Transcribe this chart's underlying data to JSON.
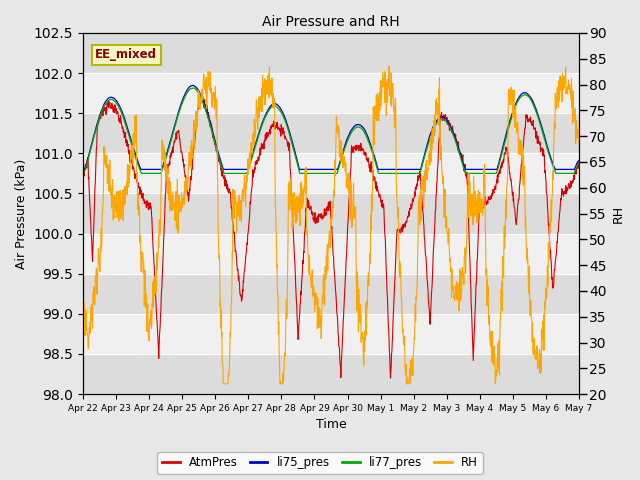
{
  "title": "Air Pressure and RH",
  "ylabel_left": "Air Pressure (kPa)",
  "ylabel_right": "RH",
  "xlabel": "Time",
  "ylim_left": [
    98.0,
    102.5
  ],
  "ylim_right": [
    20,
    90
  ],
  "yticks_left": [
    98.0,
    98.5,
    99.0,
    99.5,
    100.0,
    100.5,
    101.0,
    101.5,
    102.0,
    102.5
  ],
  "yticks_right": [
    20,
    25,
    30,
    35,
    40,
    45,
    50,
    55,
    60,
    65,
    70,
    75,
    80,
    85,
    90
  ],
  "xtick_labels": [
    "Apr 22",
    "Apr 23",
    "Apr 24",
    "Apr 25",
    "Apr 26",
    "Apr 27",
    "Apr 28",
    "Apr 29",
    "Apr 30",
    "May 1",
    "May 2",
    "May 3",
    "May 4",
    "May 5",
    "May 6",
    "May 7"
  ],
  "annotation_text": "EE_mixed",
  "annotation_box_facecolor": "#f5f5c8",
  "annotation_box_edgecolor": "#b8b800",
  "annotation_text_color": "#8b0000",
  "fig_facecolor": "#e8e8e8",
  "plot_facecolor": "#f0f0f0",
  "band_color": "#dcdcdc",
  "grid_color": "#d8d8d8",
  "colors": {
    "AtmPres": "#dd0000",
    "li75_pres": "#0000cc",
    "li77_pres": "#00aa00",
    "RH": "#ffa500"
  },
  "legend_labels": [
    "AtmPres",
    "li75_pres",
    "li77_pres",
    "RH"
  ],
  "n_points": 1440,
  "seed": 42
}
